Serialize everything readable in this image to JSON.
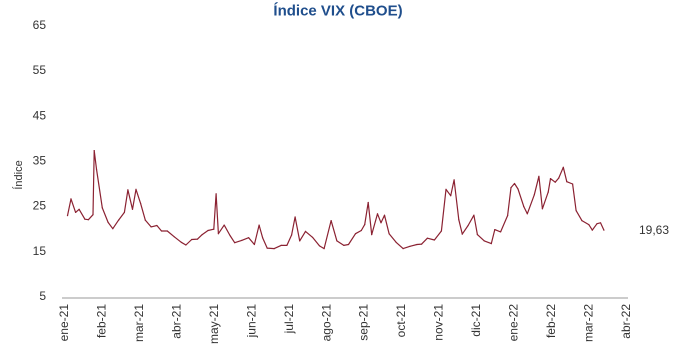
{
  "chart_data": {
    "type": "line",
    "title": "Índice VIX (CBOE)",
    "ylabel": "Índice",
    "xlabel": "",
    "ylim": [
      5,
      65
    ],
    "yticks": [
      5,
      15,
      25,
      35,
      45,
      55,
      65
    ],
    "grid": false,
    "legend": "none",
    "line_color": "#8b2232",
    "x_labels": [
      "ene-21",
      "feb-21",
      "mar-21",
      "abr-21",
      "may-21",
      "jun-21",
      "jul-21",
      "ago-21",
      "sep-21",
      "oct-21",
      "nov-21",
      "dic-21",
      "ene-22",
      "feb-22",
      "mar-22",
      "abr-22"
    ],
    "end_label": "19,63",
    "series": [
      {
        "x": [
          "2021-01-04",
          "2021-01-07",
          "2021-01-11",
          "2021-01-14",
          "2021-01-19",
          "2021-01-22",
          "2021-01-26",
          "2021-01-27",
          "2021-01-29",
          "2021-02-03",
          "2021-02-08",
          "2021-02-12",
          "2021-02-17",
          "2021-02-22",
          "2021-02-25",
          "2021-03-01",
          "2021-03-04",
          "2021-03-08",
          "2021-03-12",
          "2021-03-17",
          "2021-03-22",
          "2021-03-26",
          "2021-03-31",
          "2021-04-06",
          "2021-04-12",
          "2021-04-16",
          "2021-04-21",
          "2021-04-26",
          "2021-04-30",
          "2021-05-05",
          "2021-05-10",
          "2021-05-12",
          "2021-05-14",
          "2021-05-19",
          "2021-05-24",
          "2021-05-28",
          "2021-06-03",
          "2021-06-09",
          "2021-06-14",
          "2021-06-18",
          "2021-06-21",
          "2021-06-25",
          "2021-07-01",
          "2021-07-07",
          "2021-07-12",
          "2021-07-16",
          "2021-07-19",
          "2021-07-23",
          "2021-07-28",
          "2021-08-03",
          "2021-08-09",
          "2021-08-13",
          "2021-08-19",
          "2021-08-24",
          "2021-08-30",
          "2021-09-03",
          "2021-09-09",
          "2021-09-14",
          "2021-09-17",
          "2021-09-20",
          "2021-09-23",
          "2021-09-28",
          "2021-10-01",
          "2021-10-04",
          "2021-10-08",
          "2021-10-14",
          "2021-10-20",
          "2021-10-26",
          "2021-11-01",
          "2021-11-05",
          "2021-11-10",
          "2021-11-16",
          "2021-11-22",
          "2021-11-26",
          "2021-11-30",
          "2021-12-03",
          "2021-12-07",
          "2021-12-10",
          "2021-12-15",
          "2021-12-20",
          "2021-12-23",
          "2021-12-29",
          "2022-01-04",
          "2022-01-07",
          "2022-01-12",
          "2022-01-18",
          "2022-01-21",
          "2022-01-24",
          "2022-01-27",
          "2022-02-01",
          "2022-02-04",
          "2022-02-10",
          "2022-02-14",
          "2022-02-17",
          "2022-02-22",
          "2022-02-24",
          "2022-02-28",
          "2022-03-03",
          "2022-03-07",
          "2022-03-10",
          "2022-03-15",
          "2022-03-18",
          "2022-03-23",
          "2022-03-29",
          "2022-04-01",
          "2022-04-05",
          "2022-04-08",
          "2022-04-11"
        ],
        "y": [
          22.8,
          26.5,
          23.5,
          24.2,
          22.0,
          21.9,
          23.0,
          37.2,
          33.1,
          24.5,
          21.3,
          19.9,
          21.8,
          23.5,
          28.5,
          24.2,
          28.6,
          25.5,
          21.8,
          20.3,
          20.6,
          19.4,
          19.4,
          18.1,
          16.9,
          16.3,
          17.5,
          17.6,
          18.6,
          19.5,
          19.8,
          27.6,
          18.8,
          20.7,
          18.4,
          16.8,
          17.3,
          17.9,
          16.4,
          20.7,
          17.9,
          15.6,
          15.5,
          16.2,
          16.2,
          18.5,
          22.5,
          17.2,
          19.3,
          18.0,
          16.1,
          15.5,
          21.7,
          17.2,
          16.2,
          16.4,
          18.8,
          19.5,
          20.8,
          25.7,
          18.6,
          23.2,
          21.2,
          22.9,
          18.8,
          16.9,
          15.5,
          16.0,
          16.4,
          16.5,
          17.8,
          17.4,
          19.4,
          28.6,
          27.2,
          30.7,
          21.9,
          18.7,
          20.6,
          22.9,
          18.6,
          17.2,
          16.6,
          19.7,
          19.2,
          22.8,
          29.0,
          29.9,
          28.7,
          24.8,
          23.2,
          27.4,
          31.5,
          24.3,
          28.0,
          31.0,
          30.2,
          31.1,
          33.5,
          30.3,
          29.8,
          23.9,
          21.7,
          20.8,
          19.6,
          21.0,
          21.2,
          19.6
        ]
      }
    ]
  }
}
